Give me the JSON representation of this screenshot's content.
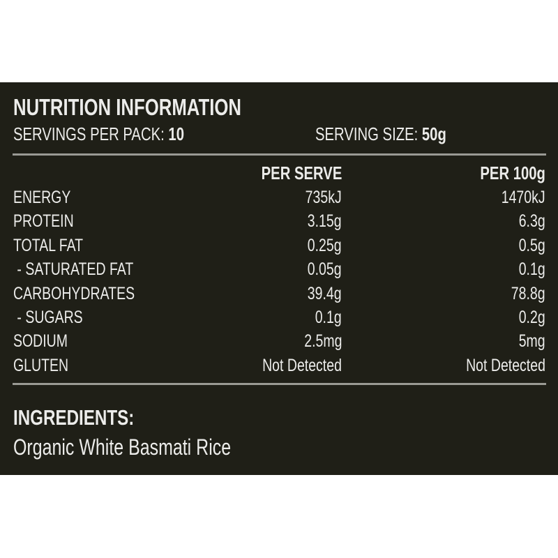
{
  "title": "NUTRITION INFORMATION",
  "servings_per_pack": {
    "label": "SERVINGS PER PACK:",
    "value": "10"
  },
  "serving_size": {
    "label": "SERVING SIZE:",
    "value": "50g"
  },
  "columns": [
    "PER SERVE",
    "PER 100g"
  ],
  "rows": [
    {
      "name": "ENERGY",
      "per_serve": "735kJ",
      "per_100g": "1470kJ"
    },
    {
      "name": "PROTEIN",
      "per_serve": "3.15g",
      "per_100g": "6.3g"
    },
    {
      "name": "TOTAL FAT",
      "per_serve": "0.25g",
      "per_100g": "0.5g"
    },
    {
      "name": " - SATURATED FAT",
      "per_serve": "0.05g",
      "per_100g": "0.1g"
    },
    {
      "name": "CARBOHYDRATES",
      "per_serve": "39.4g",
      "per_100g": "78.8g"
    },
    {
      "name": " - SUGARS",
      "per_serve": "0.1g",
      "per_100g": "0.2g"
    },
    {
      "name": "SODIUM",
      "per_serve": "2.5mg",
      "per_100g": "5mg"
    },
    {
      "name": "GLUTEN",
      "per_serve": "Not Detected",
      "per_100g": "Not Detected"
    }
  ],
  "ingredients": {
    "heading": "INGREDIENTS:",
    "text": "Organic White Basmati Rice"
  }
}
